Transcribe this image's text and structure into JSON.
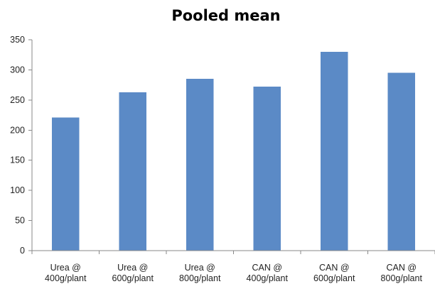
{
  "chart_data": {
    "type": "bar",
    "title": "Pooled mean",
    "xlabel": "",
    "ylabel": "",
    "categories": [
      [
        "Urea @",
        "400g/plant"
      ],
      [
        "Urea @",
        "600g/plant"
      ],
      [
        "Urea @",
        "800g/plant"
      ],
      [
        "CAN @",
        "400g/plant"
      ],
      [
        "CAN @",
        "600g/plant"
      ],
      [
        "CAN @",
        "800g/plant"
      ]
    ],
    "values": [
      221,
      263,
      285,
      272,
      330,
      295
    ],
    "ylim": [
      0,
      350
    ],
    "yticks": [
      0,
      50,
      100,
      150,
      200,
      250,
      300,
      350
    ],
    "grid": false,
    "legend": "none",
    "bar_color": "#5B8AC6",
    "axis_color": "#888888"
  }
}
